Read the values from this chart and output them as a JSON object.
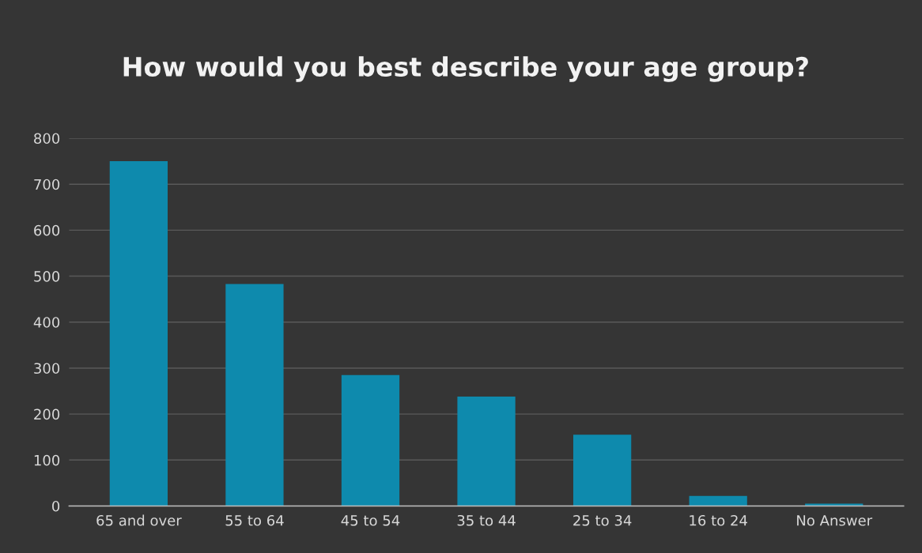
{
  "chart_data": {
    "type": "bar",
    "title": "How would you best describe your age group?",
    "categories": [
      "65 and over",
      "55 to 64",
      "45 to 54",
      "35 to 44",
      "25 to 34",
      "16 to 24",
      "No Answer"
    ],
    "values": [
      750,
      483,
      285,
      238,
      155,
      22,
      5
    ],
    "color": "#0e8aad",
    "ylim": [
      0,
      800
    ],
    "yticks": [
      0,
      100,
      200,
      300,
      400,
      500,
      600,
      700,
      800
    ],
    "grid": "y",
    "legend": false
  }
}
